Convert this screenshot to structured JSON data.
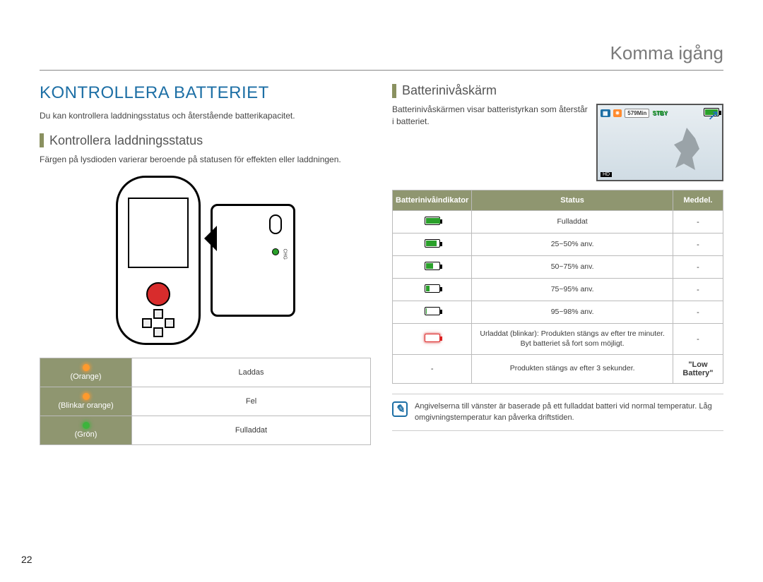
{
  "colors": {
    "accent_blue": "#1d6fa5",
    "olive": "#8f9670",
    "text": "#3a3a3a",
    "border": "#bbbbbb",
    "led_orange": "#ff9a2e",
    "led_green": "#3cb43c",
    "batt_green": "#2aa02a",
    "batt_red": "#d22222"
  },
  "page_number": "22",
  "header": {
    "title": "Komma igång"
  },
  "left": {
    "heading": "KONTROLLERA BATTERIET",
    "intro": "Du kan kontrollera laddningsstatus och återstående batterikapacitet.",
    "sub_heading": "Kontrollera laddningsstatus",
    "body": "Färgen på lysdioden varierar beroende på statusen för effekten eller laddningen.",
    "table": {
      "rows": [
        {
          "label": "(Orange)",
          "led": "orange",
          "status": "Laddas"
        },
        {
          "label": "(Blinkar orange)",
          "led": "orange",
          "status": "Fel"
        },
        {
          "label": "(Grön)",
          "led": "green",
          "status": "Fulladdat"
        }
      ]
    },
    "zoom_label": "CHG"
  },
  "right": {
    "sub_heading": "Batterinivåskärm",
    "body": "Batterinivåskärmen visar batteristyrkan som återstår i batteriet.",
    "preview": {
      "time_chip": "579Min",
      "stby": "STBY",
      "bottom_left": "HD",
      "arrow": "↗"
    },
    "table": {
      "headers": [
        "Batterinivåindikator",
        "Status",
        "Meddel."
      ],
      "rows": [
        {
          "fill_pct": 100,
          "status": "Fulladdat",
          "msg": "-"
        },
        {
          "fill_pct": 75,
          "status": "25~50% anv.",
          "msg": "-"
        },
        {
          "fill_pct": 50,
          "status": "50~75% anv.",
          "msg": "-"
        },
        {
          "fill_pct": 25,
          "status": "75~95% anv.",
          "msg": "-"
        },
        {
          "fill_pct": 8,
          "status": "95~98% anv.",
          "msg": "-"
        },
        {
          "fill_pct": 0,
          "blink": true,
          "status": "Urladdat (blinkar): Produkten stängs av efter tre minuter. Byt batteriet så fort som möjligt.",
          "msg": "-"
        },
        {
          "indicator_text": "-",
          "status": "Produkten stängs av efter 3 sekunder.",
          "msg": "\"Low Battery\"",
          "msg_bold": true
        }
      ]
    },
    "note": "Angivelserna till vänster är baserade på ett fulladdat batteri vid normal temperatur. Låg omgivningstemperatur kan påverka driftstiden."
  }
}
